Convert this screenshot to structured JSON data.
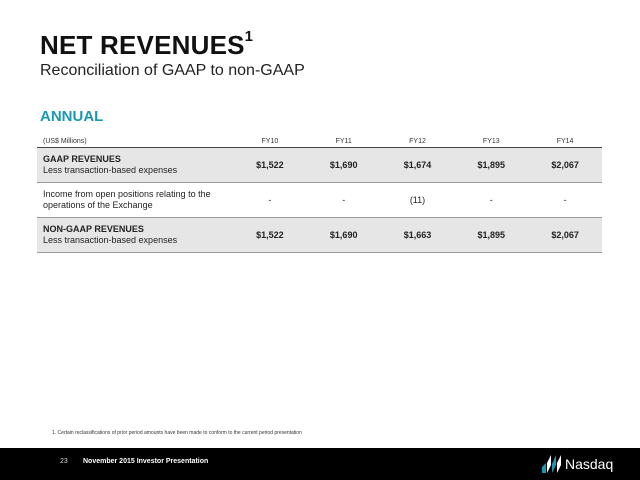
{
  "page": {
    "title": "NET REVENUES",
    "title_sup": "1",
    "subtitle": "Reconciliation of GAAP to non-GAAP",
    "section": "ANNUAL",
    "accent_color": "#1b97b0"
  },
  "table": {
    "unit_label": "(US$ Millions)",
    "columns": [
      "FY10",
      "FY11",
      "FY12",
      "FY13",
      "FY14"
    ],
    "rows": [
      {
        "title": "GAAP REVENUES",
        "label": "Less transaction-based expenses",
        "values": [
          "$1,522",
          "$1,690",
          "$1,674",
          "$1,895",
          "$2,067"
        ]
      },
      {
        "title": "",
        "label": "Income from open positions relating to the operations of the Exchange",
        "values": [
          "-",
          "-",
          "(11)",
          "-",
          "-"
        ]
      },
      {
        "title": "NON-GAAP REVENUES",
        "label": "Less transaction-based expenses",
        "values": [
          "$1,522",
          "$1,690",
          "$1,663",
          "$1,895",
          "$2,067"
        ]
      }
    ]
  },
  "footnote": "1. Certain reclassifications of prior period amounts have been made to conform to the current period presentation",
  "footer": {
    "page_number": "23",
    "presentation": "November 2015 Investor Presentation",
    "logo_text": "Nasdaq",
    "logo_icon": "nasdaq-logo-icon"
  }
}
